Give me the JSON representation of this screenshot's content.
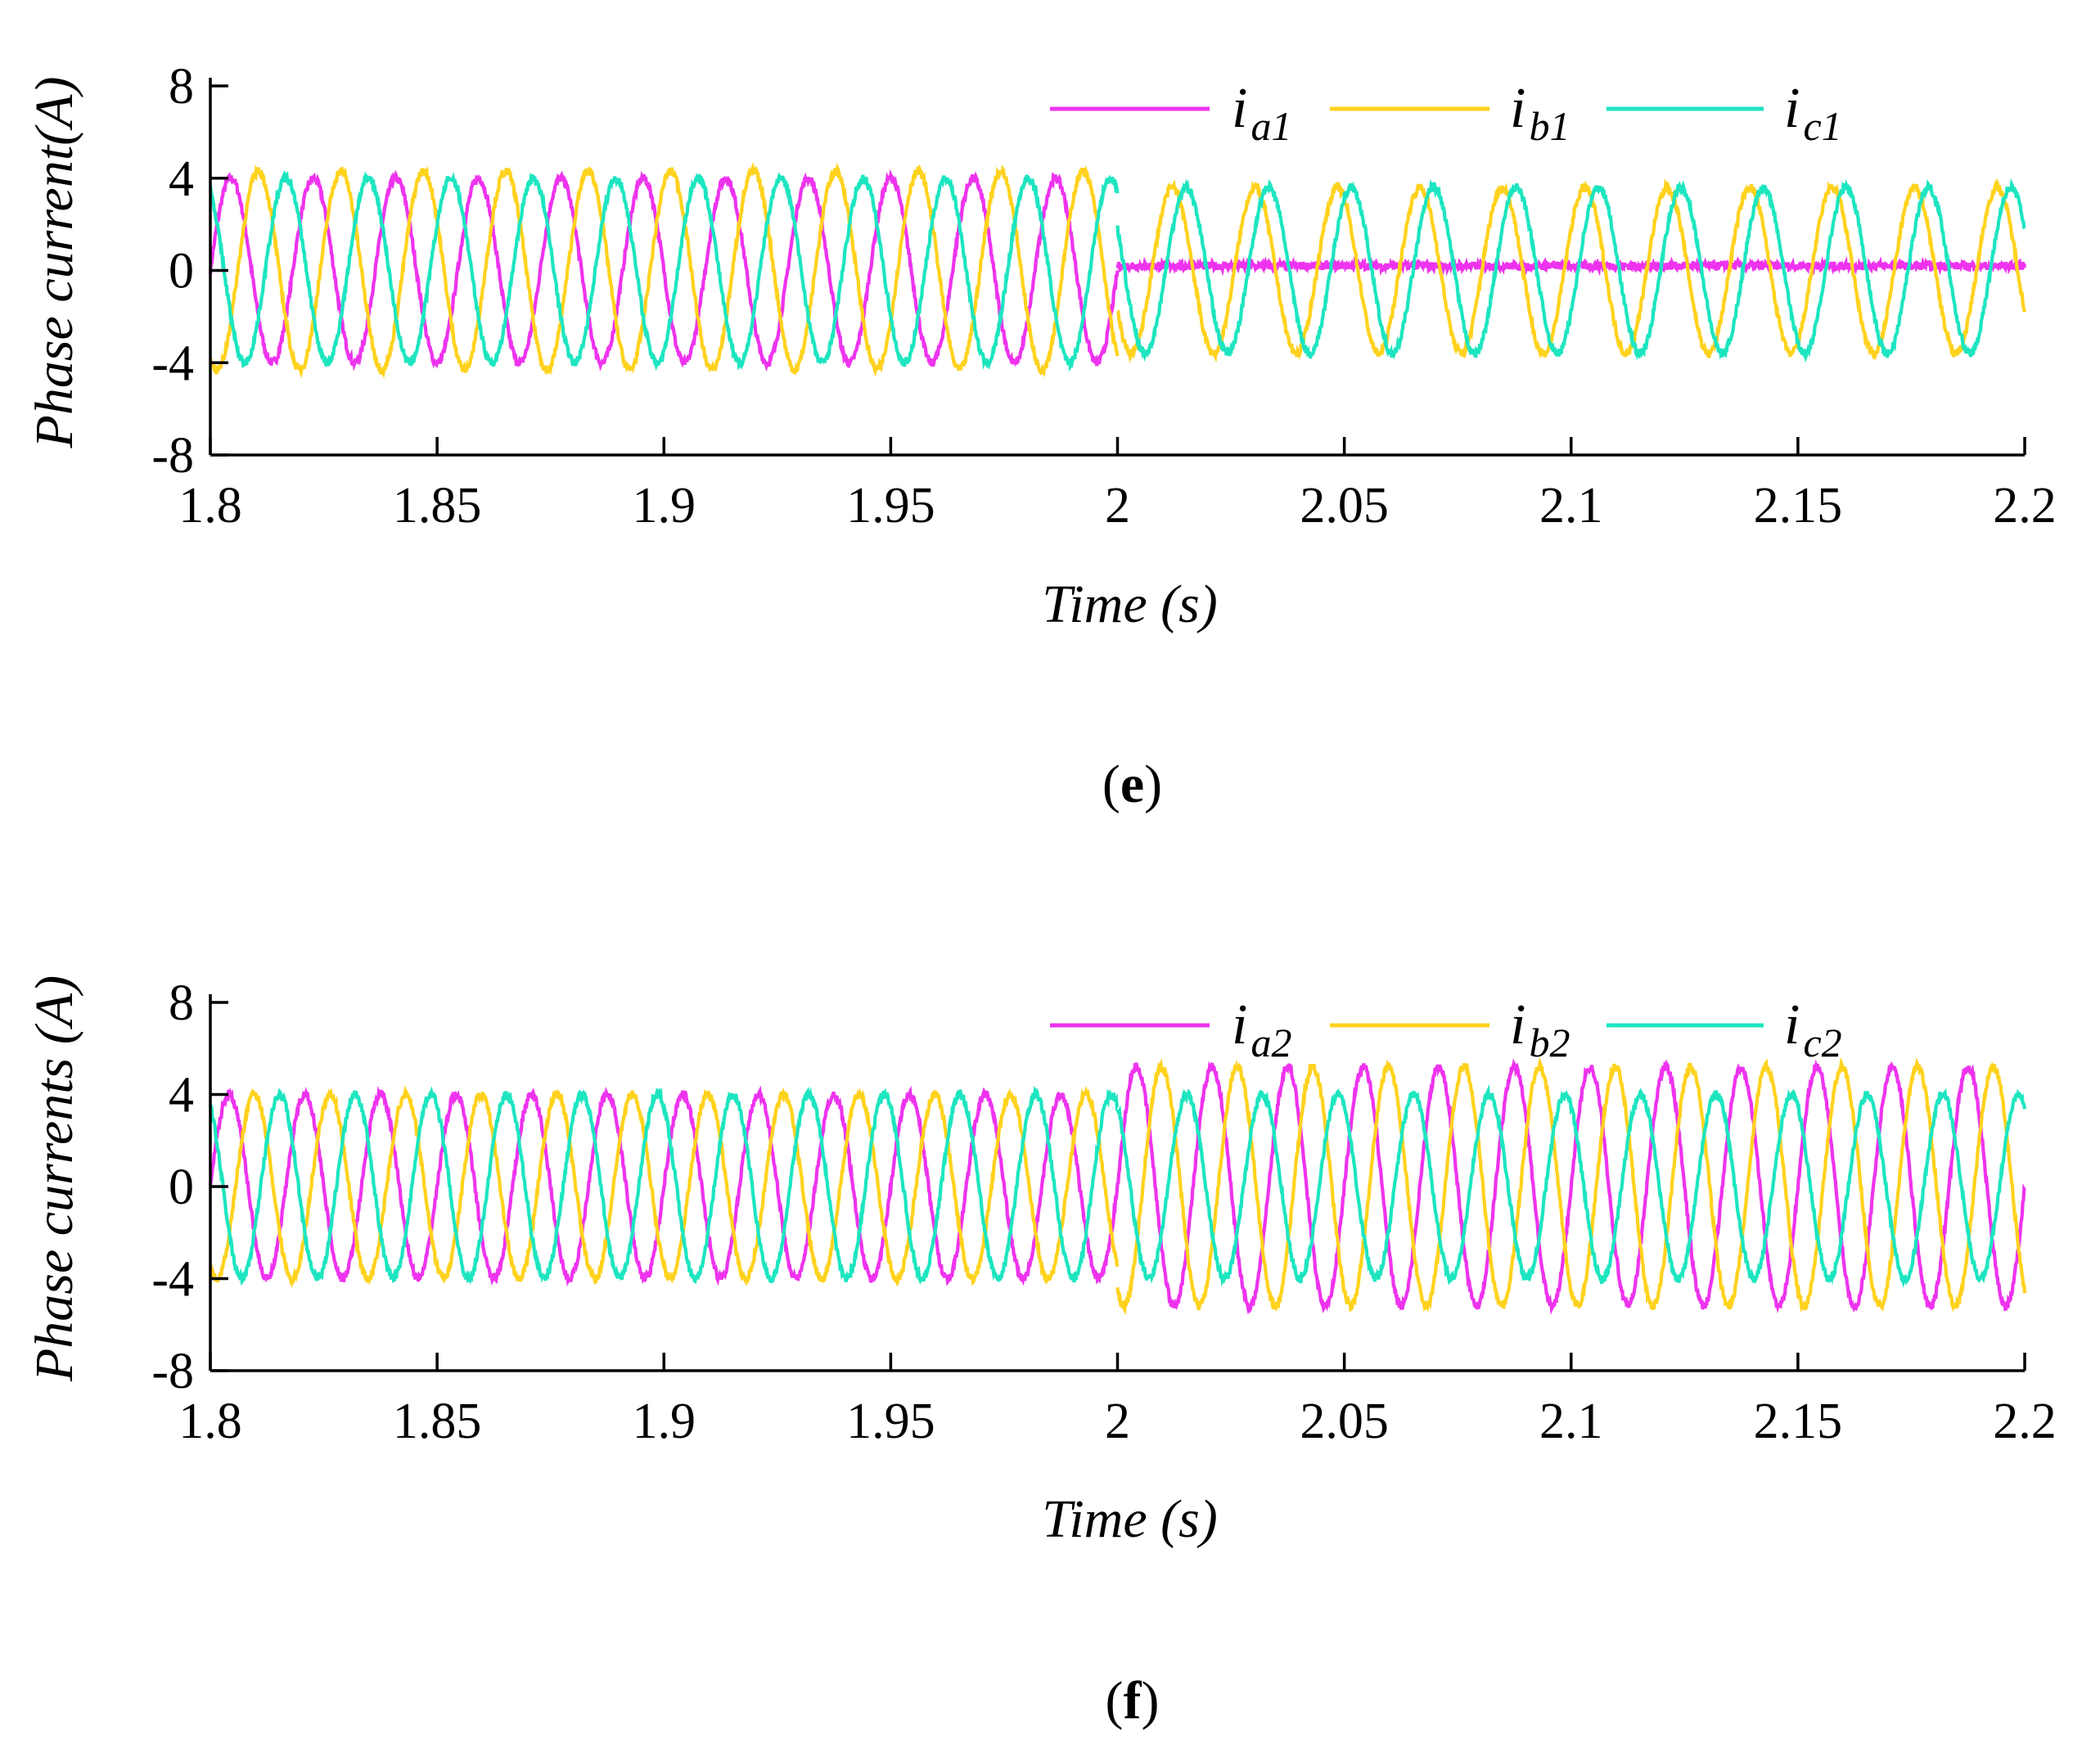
{
  "chart_data": [
    {
      "type": "line",
      "panel_label": "e",
      "xlabel": "Time (s)",
      "ylabel": "Phase current(A)",
      "xlim": [
        1.8,
        2.2
      ],
      "ylim": [
        -8,
        8
      ],
      "x_ticks": [
        "1.8",
        "1.85",
        "1.9",
        "1.95",
        "2",
        "2.05",
        "2.1",
        "2.15",
        "2.2"
      ],
      "y_ticks": [
        "8",
        "4",
        "0",
        "-4",
        "-8"
      ],
      "grid": false,
      "legend_position": "top-right",
      "frequency_hz": 55,
      "series": [
        {
          "name": "i",
          "subscript": "a1",
          "color": "#ee33ee",
          "segments": [
            {
              "t_start": 1.8,
              "t_end": 2.0,
              "amplitude": 4.0,
              "phase_deg": 0,
              "offset": 0
            },
            {
              "t_start": 2.0,
              "t_end": 2.2,
              "amplitude": 0.0,
              "phase_deg": 0,
              "offset": 0.2
            }
          ]
        },
        {
          "name": "i",
          "subscript": "b1",
          "color": "#ffd21e",
          "segments": [
            {
              "t_start": 1.8,
              "t_end": 2.0,
              "amplitude": 4.3,
              "phase_deg": -120,
              "offset": 0
            },
            {
              "t_start": 2.0,
              "t_end": 2.2,
              "amplitude": 3.6,
              "phase_deg": -150,
              "offset": 0
            }
          ]
        },
        {
          "name": "i",
          "subscript": "c1",
          "color": "#1de5c0",
          "segments": [
            {
              "t_start": 1.8,
              "t_end": 2.0,
              "amplitude": 4.0,
              "phase_deg": 120,
              "offset": 0
            },
            {
              "t_start": 2.0,
              "t_end": 2.2,
              "amplitude": 3.6,
              "phase_deg": 150,
              "offset": 0
            }
          ]
        }
      ]
    },
    {
      "type": "line",
      "panel_label": "f",
      "xlabel": "Time (s)",
      "ylabel": "Phase currents (A)",
      "xlim": [
        1.8,
        2.2
      ],
      "ylim": [
        -8,
        8
      ],
      "x_ticks": [
        "1.8",
        "1.85",
        "1.9",
        "1.95",
        "2",
        "2.05",
        "2.1",
        "2.15",
        "2.2"
      ],
      "y_ticks": [
        "8",
        "4",
        "0",
        "-4",
        "-8"
      ],
      "grid": false,
      "legend_position": "top-right",
      "frequency_hz": 60,
      "series": [
        {
          "name": "i",
          "subscript": "a2",
          "color": "#ee33ee",
          "segments": [
            {
              "t_start": 1.8,
              "t_end": 2.0,
              "amplitude": 4.0,
              "phase_deg": 0,
              "offset": 0
            },
            {
              "t_start": 2.0,
              "t_end": 2.2,
              "amplitude": 5.2,
              "phase_deg": 0,
              "offset": 0
            }
          ]
        },
        {
          "name": "i",
          "subscript": "b2",
          "color": "#ffd21e",
          "segments": [
            {
              "t_start": 1.8,
              "t_end": 2.0,
              "amplitude": 4.0,
              "phase_deg": -120,
              "offset": 0
            },
            {
              "t_start": 2.0,
              "t_end": 2.2,
              "amplitude": 5.2,
              "phase_deg": -120,
              "offset": 0
            }
          ]
        },
        {
          "name": "i",
          "subscript": "c2",
          "color": "#1de5c0",
          "segments": [
            {
              "t_start": 1.8,
              "t_end": 2.0,
              "amplitude": 4.0,
              "phase_deg": 120,
              "offset": 0
            },
            {
              "t_start": 2.0,
              "t_end": 2.2,
              "amplitude": 4.0,
              "phase_deg": 120,
              "offset": 0
            }
          ]
        }
      ]
    }
  ]
}
